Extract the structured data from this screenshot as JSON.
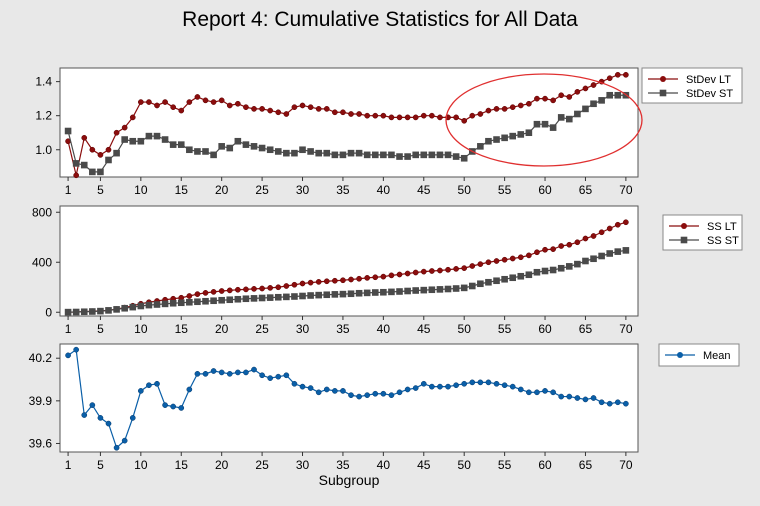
{
  "title": "Report 4: Cumulative Statistics for All Data",
  "colors": {
    "lt": "#8b0d0d",
    "st": "#4a4a4a",
    "mean": "#0a5fa8",
    "annotation": "#e03030",
    "background": "#e8e8e8",
    "plot": "#ffffff"
  },
  "chart_data": [
    {
      "type": "line",
      "x": [
        1,
        2,
        3,
        4,
        5,
        6,
        7,
        8,
        9,
        10,
        11,
        12,
        13,
        14,
        15,
        16,
        17,
        18,
        19,
        20,
        21,
        22,
        23,
        24,
        25,
        26,
        27,
        28,
        29,
        30,
        31,
        32,
        33,
        34,
        35,
        36,
        37,
        38,
        39,
        40,
        41,
        42,
        43,
        44,
        45,
        46,
        47,
        48,
        49,
        50,
        51,
        52,
        53,
        54,
        55,
        56,
        57,
        58,
        59,
        60,
        61,
        62,
        63,
        64,
        65,
        66,
        67,
        68,
        69,
        70
      ],
      "xticks": [
        1,
        5,
        10,
        15,
        20,
        25,
        30,
        35,
        40,
        45,
        50,
        55,
        60,
        65,
        70
      ],
      "ylim": [
        0.84,
        1.48
      ],
      "yticks": [
        1.0,
        1.2,
        1.4
      ],
      "ytick_labels": [
        "1.0",
        "1.2",
        "1.4"
      ],
      "legend": "right",
      "annotation": "ellipse around subgroups 50-70",
      "series": [
        {
          "name": "StDev LT",
          "marker": "circle",
          "color": "#8b0d0d",
          "values": [
            1.05,
            0.85,
            1.07,
            1.0,
            0.97,
            1.0,
            1.1,
            1.13,
            1.19,
            1.28,
            1.28,
            1.26,
            1.28,
            1.25,
            1.23,
            1.28,
            1.31,
            1.29,
            1.28,
            1.29,
            1.26,
            1.27,
            1.25,
            1.24,
            1.24,
            1.23,
            1.22,
            1.21,
            1.25,
            1.26,
            1.25,
            1.24,
            1.24,
            1.22,
            1.22,
            1.21,
            1.21,
            1.2,
            1.2,
            1.2,
            1.19,
            1.19,
            1.19,
            1.19,
            1.2,
            1.2,
            1.19,
            1.19,
            1.19,
            1.17,
            1.2,
            1.21,
            1.23,
            1.24,
            1.24,
            1.25,
            1.26,
            1.27,
            1.3,
            1.3,
            1.29,
            1.32,
            1.31,
            1.34,
            1.36,
            1.38,
            1.4,
            1.42,
            1.44,
            1.44
          ]
        },
        {
          "name": "StDev ST",
          "marker": "square",
          "color": "#4a4a4a",
          "values": [
            1.11,
            0.92,
            0.91,
            0.87,
            0.87,
            0.94,
            0.98,
            1.06,
            1.05,
            1.05,
            1.08,
            1.08,
            1.06,
            1.03,
            1.03,
            1.0,
            0.99,
            0.99,
            0.97,
            1.02,
            1.01,
            1.05,
            1.03,
            1.02,
            1.01,
            1.0,
            0.99,
            0.98,
            0.98,
            1.0,
            0.99,
            0.98,
            0.98,
            0.97,
            0.97,
            0.98,
            0.98,
            0.97,
            0.97,
            0.97,
            0.97,
            0.96,
            0.96,
            0.97,
            0.97,
            0.97,
            0.97,
            0.97,
            0.96,
            0.95,
            0.99,
            1.02,
            1.05,
            1.06,
            1.07,
            1.08,
            1.09,
            1.1,
            1.15,
            1.15,
            1.13,
            1.19,
            1.18,
            1.21,
            1.24,
            1.27,
            1.29,
            1.32,
            1.32,
            1.32
          ]
        }
      ]
    },
    {
      "type": "line",
      "x": [
        1,
        2,
        3,
        4,
        5,
        6,
        7,
        8,
        9,
        10,
        11,
        12,
        13,
        14,
        15,
        16,
        17,
        18,
        19,
        20,
        21,
        22,
        23,
        24,
        25,
        26,
        27,
        28,
        29,
        30,
        31,
        32,
        33,
        34,
        35,
        36,
        37,
        38,
        39,
        40,
        41,
        42,
        43,
        44,
        45,
        46,
        47,
        48,
        49,
        50,
        51,
        52,
        53,
        54,
        55,
        56,
        57,
        58,
        59,
        60,
        61,
        62,
        63,
        64,
        65,
        66,
        67,
        68,
        69,
        70
      ],
      "xticks": [
        1,
        5,
        10,
        15,
        20,
        25,
        30,
        35,
        40,
        45,
        50,
        55,
        60,
        65,
        70
      ],
      "ylim": [
        -30,
        850
      ],
      "yticks": [
        0,
        400,
        800
      ],
      "ytick_labels": [
        "0",
        "400",
        "800"
      ],
      "legend": "right",
      "series": [
        {
          "name": "SS LT",
          "marker": "circle",
          "color": "#8b0d0d",
          "values": [
            1,
            2,
            5,
            8,
            11,
            15,
            25,
            37,
            52,
            68,
            80,
            90,
            100,
            108,
            116,
            130,
            145,
            155,
            163,
            170,
            175,
            180,
            183,
            187,
            190,
            195,
            200,
            210,
            220,
            230,
            237,
            243,
            248,
            252,
            256,
            262,
            268,
            275,
            280,
            285,
            295,
            302,
            310,
            318,
            325,
            330,
            334,
            340,
            347,
            353,
            370,
            385,
            400,
            410,
            420,
            430,
            440,
            455,
            480,
            500,
            505,
            530,
            540,
            560,
            590,
            610,
            640,
            670,
            700,
            720
          ]
        },
        {
          "name": "SS ST",
          "marker": "square",
          "color": "#4a4a4a",
          "values": [
            1,
            2,
            4,
            6,
            9,
            15,
            23,
            32,
            41,
            50,
            57,
            62,
            67,
            72,
            76,
            80,
            84,
            88,
            92,
            96,
            100,
            104,
            108,
            111,
            114,
            117,
            120,
            123,
            126,
            130,
            134,
            137,
            140,
            143,
            145,
            148,
            152,
            155,
            158,
            160,
            163,
            166,
            170,
            174,
            177,
            180,
            183,
            186,
            190,
            195,
            210,
            228,
            240,
            252,
            264,
            276,
            288,
            300,
            320,
            330,
            338,
            352,
            367,
            385,
            410,
            428,
            450,
            470,
            485,
            495
          ]
        }
      ]
    },
    {
      "type": "line",
      "x": [
        1,
        2,
        3,
        4,
        5,
        6,
        7,
        8,
        9,
        10,
        11,
        12,
        13,
        14,
        15,
        16,
        17,
        18,
        19,
        20,
        21,
        22,
        23,
        24,
        25,
        26,
        27,
        28,
        29,
        30,
        31,
        32,
        33,
        34,
        35,
        36,
        37,
        38,
        39,
        40,
        41,
        42,
        43,
        44,
        45,
        46,
        47,
        48,
        49,
        50,
        51,
        52,
        53,
        54,
        55,
        56,
        57,
        58,
        59,
        60,
        61,
        62,
        63,
        64,
        65,
        66,
        67,
        68,
        69,
        70
      ],
      "xticks": [
        1,
        5,
        10,
        15,
        20,
        25,
        30,
        35,
        40,
        45,
        50,
        55,
        60,
        65,
        70
      ],
      "ylim": [
        39.54,
        40.3
      ],
      "yticks": [
        39.6,
        39.9,
        40.2
      ],
      "ytick_labels": [
        "39.6",
        "39.9",
        "40.2"
      ],
      "xlabel": "Subgroup",
      "legend": "right",
      "series": [
        {
          "name": "Mean",
          "marker": "circle",
          "color": "#0a5fa8",
          "values": [
            40.22,
            40.26,
            39.8,
            39.87,
            39.78,
            39.74,
            39.57,
            39.62,
            39.78,
            39.97,
            40.01,
            40.02,
            39.87,
            39.86,
            39.85,
            39.98,
            40.09,
            40.09,
            40.11,
            40.1,
            40.09,
            40.1,
            40.1,
            40.12,
            40.08,
            40.06,
            40.07,
            40.08,
            40.02,
            40.0,
            39.99,
            39.96,
            39.98,
            39.97,
            39.97,
            39.94,
            39.93,
            39.94,
            39.95,
            39.95,
            39.94,
            39.96,
            39.98,
            39.99,
            40.02,
            40.0,
            40.0,
            40.0,
            40.01,
            40.02,
            40.03,
            40.03,
            40.03,
            40.02,
            40.01,
            40.0,
            39.98,
            39.96,
            39.96,
            39.97,
            39.96,
            39.93,
            39.93,
            39.92,
            39.91,
            39.92,
            39.89,
            39.88,
            39.89,
            39.88
          ]
        }
      ]
    }
  ]
}
